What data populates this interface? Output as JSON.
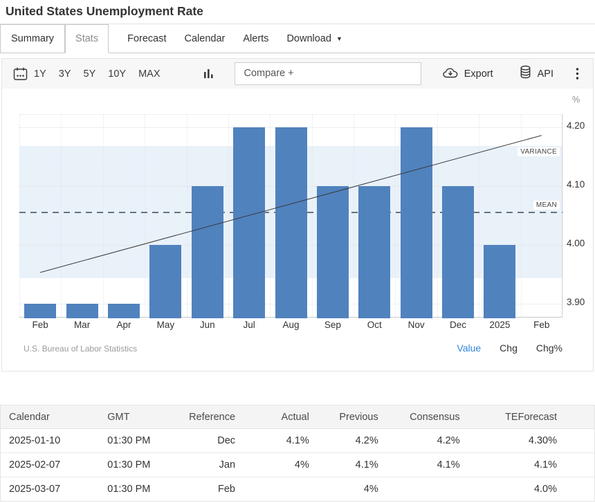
{
  "page": {
    "title": "United States Unemployment Rate"
  },
  "tabs": {
    "items": [
      {
        "label": "Summary"
      },
      {
        "label": "Stats"
      },
      {
        "label": "Forecast"
      },
      {
        "label": "Calendar"
      },
      {
        "label": "Alerts"
      },
      {
        "label": "Download"
      }
    ]
  },
  "toolbar": {
    "ranges": [
      "1Y",
      "3Y",
      "5Y",
      "10Y",
      "MAX"
    ],
    "compare_placeholder": "Compare +",
    "export_label": "Export",
    "api_label": "API",
    "icons": [
      "calendar-icon",
      "bar-chart-icon",
      "cloud-download-icon",
      "database-icon",
      "kebab-menu-icon"
    ]
  },
  "chart_data": {
    "type": "bar",
    "title": "United States Unemployment Rate",
    "unit_label": "%",
    "categories": [
      "Feb",
      "Mar",
      "Apr",
      "May",
      "Jun",
      "Jul",
      "Aug",
      "Sep",
      "Oct",
      "Nov",
      "Dec",
      "2025",
      "Feb"
    ],
    "values": [
      3.9,
      3.9,
      3.9,
      4.0,
      4.1,
      4.2,
      4.2,
      4.1,
      4.1,
      4.2,
      4.1,
      4.0,
      null
    ],
    "y_ticks": [
      4.2,
      4.1,
      4.0,
      3.9
    ],
    "ylim": [
      3.875,
      4.221
    ],
    "grid": true,
    "legend_position": "none",
    "mean": 4.055,
    "variance_band": [
      3.943,
      4.168
    ],
    "trend_line": {
      "start": 3.953,
      "end": 4.186
    },
    "labels": {
      "variance": "VARIANCE",
      "mean": "MEAN"
    },
    "bar_color": "#5082be",
    "band_color": "#e9f1f9",
    "accent_blue": "#2e86de",
    "attribution": "U.S. Bureau of Labor Statistics",
    "value_modes": [
      {
        "label": "Value",
        "active": true
      },
      {
        "label": "Chg",
        "active": false
      },
      {
        "label": "Chg%",
        "active": false
      }
    ]
  },
  "table": {
    "headers": [
      "Calendar",
      "GMT",
      "Reference",
      "Actual",
      "Previous",
      "Consensus",
      "TEForecast"
    ],
    "rows": [
      [
        "2025-01-10",
        "01:30 PM",
        "Dec",
        "4.1%",
        "4.2%",
        "4.2%",
        "4.30%"
      ],
      [
        "2025-02-07",
        "01:30 PM",
        "Jan",
        "4%",
        "4.1%",
        "4.1%",
        "4.1%"
      ],
      [
        "2025-03-07",
        "01:30 PM",
        "Feb",
        "",
        "4%",
        "",
        "4.0%"
      ]
    ]
  }
}
